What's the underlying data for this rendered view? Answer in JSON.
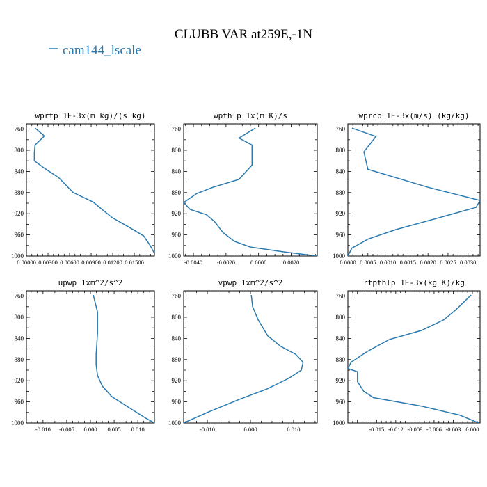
{
  "figure": {
    "title": "CLUBB VAR at259E,-1N",
    "legend": [
      {
        "label": "cam144_lscale",
        "color": "#2a7ab0"
      }
    ]
  },
  "chart_data": [
    {
      "type": "line",
      "title": "wprtp  1E-3x(m kg)/(s kg)",
      "xlim": [
        0.0,
        0.0178
      ],
      "ylim": [
        1000,
        750
      ],
      "xticks": [
        0.0,
        0.003,
        0.006,
        0.009,
        0.012,
        0.015
      ],
      "xtick_labels": [
        "0.00000",
        "0.00300",
        "0.00600",
        "0.00900",
        "0.01200",
        "0.01500"
      ],
      "yticks": [
        760,
        800,
        840,
        880,
        920,
        960,
        1000
      ],
      "series": [
        {
          "name": "cam144_lscale",
          "color": "#2a7ab0",
          "x": [
            0.0012,
            0.0025,
            0.0012,
            0.0011,
            0.0011,
            0.0025,
            0.0045,
            0.0065,
            0.0093,
            0.0108,
            0.012,
            0.0142,
            0.0163,
            0.0172,
            0.0178
          ],
          "y": [
            758,
            773,
            790,
            805,
            820,
            834,
            852,
            880,
            898,
            915,
            928,
            945,
            962,
            980,
            995
          ]
        }
      ]
    },
    {
      "type": "line",
      "title": "wpthlp  1x(m K)/s",
      "xlim": [
        -0.0046,
        0.0036
      ],
      "ylim": [
        1000,
        750
      ],
      "xticks": [
        -0.004,
        -0.002,
        0.0,
        0.002
      ],
      "xtick_labels": [
        "-0.0040",
        "-0.0020",
        "0.0000",
        "0.0020"
      ],
      "yticks": [
        760,
        800,
        840,
        880,
        920,
        960,
        1000
      ],
      "series": [
        {
          "name": "cam144_lscale",
          "color": "#2a7ab0",
          "x": [
            -0.0002,
            -0.0012,
            -0.0004,
            -0.0004,
            -0.0012,
            -0.0028,
            -0.0038,
            -0.0046,
            -0.0042,
            -0.0032,
            -0.0027,
            -0.0022,
            -0.0015,
            -0.0005,
            0.0015,
            0.0036
          ],
          "y": [
            758,
            777,
            790,
            828,
            855,
            870,
            882,
            899,
            912,
            922,
            935,
            955,
            972,
            983,
            992,
            1000
          ]
        }
      ]
    },
    {
      "type": "line",
      "title": "wprcp  1E-3x(m/s) (kg/kg)",
      "xlim": [
        0.0,
        0.0033
      ],
      "ylim": [
        1000,
        750
      ],
      "xticks": [
        0.0,
        0.0005,
        0.001,
        0.0015,
        0.002,
        0.0025,
        0.003
      ],
      "xtick_labels": [
        "0.0000",
        "0.0005",
        "0.0010",
        "0.0015",
        "0.0020",
        "0.0025",
        "0.0030"
      ],
      "yticks": [
        760,
        800,
        840,
        880,
        920,
        960,
        1000
      ],
      "series": [
        {
          "name": "cam144_lscale",
          "color": "#2a7ab0",
          "x": [
            0.0001,
            0.0007,
            0.0004,
            0.0005,
            0.002,
            0.0033,
            0.0032,
            0.0024,
            0.0012,
            0.0005,
            0.0001,
            0.0
          ],
          "y": [
            758,
            774,
            803,
            836,
            870,
            895,
            908,
            925,
            950,
            968,
            985,
            1000
          ]
        }
      ]
    },
    {
      "type": "line",
      "title": "upwp  1xm^2/s^2",
      "xlim": [
        -0.0135,
        0.0135
      ],
      "ylim": [
        1000,
        750
      ],
      "xticks": [
        -0.01,
        -0.005,
        0.0,
        0.005,
        0.01
      ],
      "xtick_labels": [
        "-0.010",
        "-0.005",
        "0.000",
        "0.005",
        "0.010"
      ],
      "yticks": [
        760,
        800,
        840,
        880,
        920,
        960,
        1000
      ],
      "series": [
        {
          "name": "cam144_lscale",
          "color": "#2a7ab0",
          "x": [
            0.0006,
            0.0015,
            0.0015,
            0.0012,
            0.0012,
            0.0015,
            0.0025,
            0.0045,
            0.008,
            0.0115,
            0.0135
          ],
          "y": [
            758,
            790,
            830,
            870,
            890,
            910,
            930,
            950,
            970,
            990,
            1000
          ]
        }
      ]
    },
    {
      "type": "line",
      "title": "vpwp  1xm^2/s^2",
      "xlim": [
        -0.0155,
        0.0155
      ],
      "ylim": [
        1000,
        750
      ],
      "xticks": [
        -0.01,
        0.0,
        0.01
      ],
      "xtick_labels": [
        "-0.010",
        "0.000",
        "0.010"
      ],
      "yticks": [
        760,
        800,
        840,
        880,
        920,
        960,
        1000
      ],
      "series": [
        {
          "name": "cam144_lscale",
          "color": "#2a7ab0",
          "x": [
            0.0002,
            0.0005,
            0.0018,
            0.004,
            0.007,
            0.0105,
            0.0122,
            0.0118,
            0.009,
            0.004,
            -0.0025,
            -0.01,
            -0.0155
          ],
          "y": [
            758,
            780,
            805,
            835,
            855,
            870,
            885,
            900,
            915,
            935,
            955,
            980,
            1000
          ]
        }
      ]
    },
    {
      "type": "line",
      "title": "rtpthlp  1E-3x(kg K)/kg",
      "xlim": [
        -0.0195,
        0.0012
      ],
      "ylim": [
        1000,
        750
      ],
      "xticks": [
        -0.015,
        -0.012,
        -0.009,
        -0.006,
        -0.003,
        0.0
      ],
      "xtick_labels": [
        "-0.015",
        "-0.012",
        "-0.009",
        "-0.006",
        "-0.003",
        "0.000"
      ],
      "yticks": [
        760,
        800,
        840,
        880,
        920,
        960,
        1000
      ],
      "series": [
        {
          "name": "cam144_lscale",
          "color": "#2a7ab0",
          "x": [
            -0.0002,
            -0.0025,
            -0.0045,
            -0.008,
            -0.013,
            -0.0165,
            -0.019,
            -0.0195,
            -0.018,
            -0.018,
            -0.017,
            -0.0155,
            -0.008,
            -0.002,
            0.001
          ],
          "y": [
            758,
            785,
            805,
            825,
            842,
            865,
            885,
            897,
            903,
            922,
            940,
            952,
            968,
            985,
            1000
          ]
        }
      ]
    }
  ]
}
